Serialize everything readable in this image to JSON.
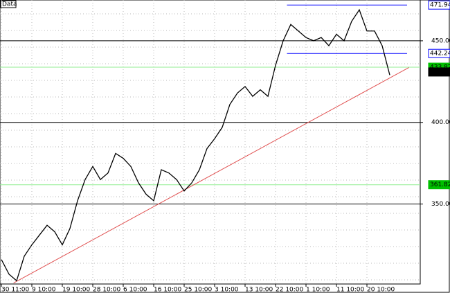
{
  "chart_data": {
    "type": "line",
    "title": "Data",
    "categories": [
      "30 11:00",
      null,
      null,
      null,
      "9 10:00",
      null,
      null,
      null,
      "19 10:00",
      null,
      null,
      null,
      "28 10:00",
      null,
      null,
      null,
      "6 10:00",
      null,
      null,
      null,
      "16 10:00",
      null,
      null,
      null,
      "25 10:00",
      null,
      null,
      null,
      "3 10:00",
      null,
      null,
      null,
      "13 10:00",
      null,
      null,
      null,
      "22 10:00",
      null,
      null,
      null,
      "1 10:00",
      null,
      null,
      null,
      "11 10:00",
      null,
      null,
      null,
      "20 10:00",
      null,
      null,
      null
    ],
    "series": [
      {
        "color": "#000000",
        "values": [
          316,
          307,
          303,
          318,
          325,
          331,
          337,
          333,
          325,
          335,
          352,
          365,
          373,
          365,
          369,
          381,
          378,
          373,
          363,
          356,
          352,
          371,
          369,
          365,
          358,
          363,
          371,
          384,
          390,
          397,
          411,
          418,
          422,
          416,
          420,
          416,
          435,
          450,
          460,
          456,
          452,
          450,
          452,
          447,
          454,
          450,
          462,
          469,
          456,
          456,
          447,
          429
        ]
      }
    ],
    "ylim": [
      301,
      475
    ],
    "yticks": [
      {
        "value": 350,
        "label": "350.00"
      },
      {
        "value": 400,
        "label": "400.00"
      },
      {
        "value": 450,
        "label": "450.00"
      }
    ],
    "levels": [
      {
        "value": 471.94,
        "label": "471.94",
        "color": "#0000ff"
      },
      {
        "value": 442.24,
        "label": "442.24",
        "color": "#0000ff"
      },
      {
        "value": 433.82,
        "label": "433.82",
        "color": "#00c000"
      },
      {
        "value": 430.9,
        "label": "430.90",
        "color": "#000000"
      },
      {
        "value": 361.82,
        "label": "361.82",
        "color": "#00c000"
      }
    ],
    "trendline": {
      "x": [
        1.6,
        53.5
      ],
      "values": [
        301.6,
        433.6
      ],
      "color": "#e05050"
    },
    "grid": true
  }
}
